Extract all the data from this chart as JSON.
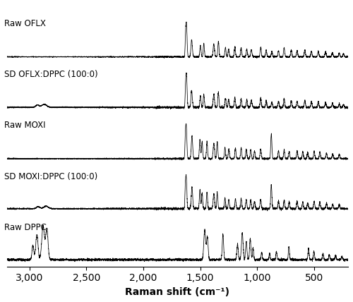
{
  "x_ticks": [
    3000,
    2500,
    2000,
    1500,
    1000,
    500
  ],
  "x_label": "Raman shift (cm⁻¹)",
  "labels": [
    "Raw OFLX",
    "SD OFLX:DPPC (100:0)",
    "Raw MOXI",
    "SD MOXI:DPPC (100:0)",
    "Raw DPPC"
  ],
  "figsize": [
    5.0,
    4.28
  ],
  "dpi": 100,
  "line_color": "#000000",
  "bg_color": "#ffffff",
  "label_fontsize": 8.5,
  "xlabel_fontsize": 10
}
